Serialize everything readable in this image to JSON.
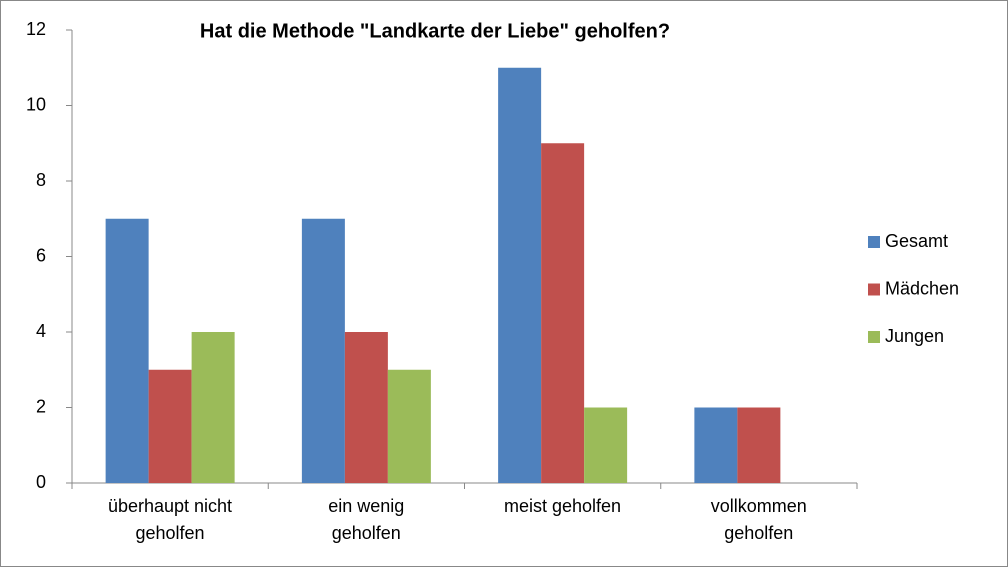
{
  "chart_data": {
    "type": "bar",
    "title": "Hat die Methode \"Landkarte der Liebe\" geholfen?",
    "categories": [
      "überhaupt nicht\ngeholfen",
      "ein wenig\ngeholfen",
      "meist geholfen",
      "vollkommen\ngeholfen"
    ],
    "series": [
      {
        "name": "Gesamt",
        "color": "#4f81bd",
        "values": [
          7,
          7,
          11,
          2
        ]
      },
      {
        "name": "Mädchen",
        "color": "#c0504d",
        "values": [
          3,
          4,
          9,
          2
        ]
      },
      {
        "name": "Jungen",
        "color": "#9bbb59",
        "values": [
          4,
          3,
          2,
          0
        ]
      }
    ],
    "ylim": [
      0,
      12
    ],
    "yticks": [
      0,
      2,
      4,
      6,
      8,
      10,
      12
    ],
    "grid": false,
    "legend": "right"
  }
}
